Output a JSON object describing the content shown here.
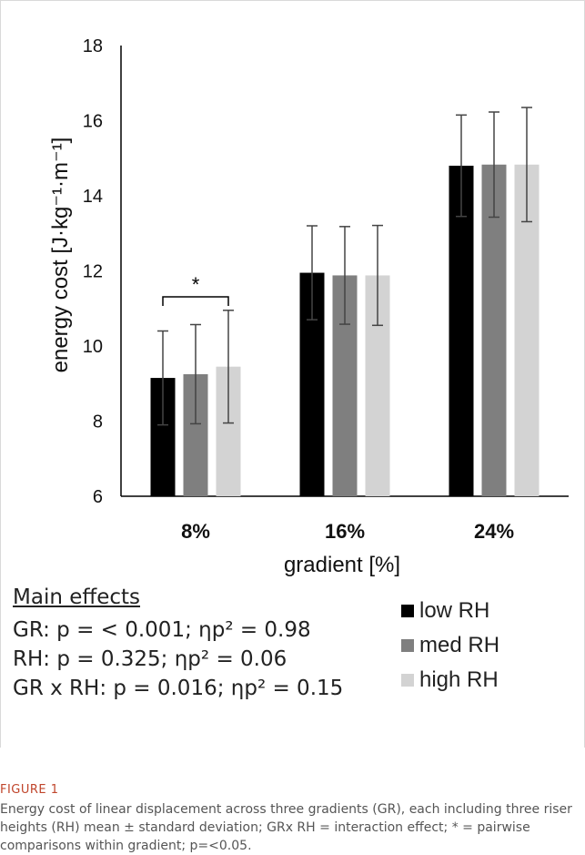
{
  "chart_data": {
    "type": "bar",
    "categories": [
      "8%",
      "16%",
      "24%"
    ],
    "xlabel": "gradient [%]",
    "ylabel": "energy cost [J·kg⁻¹·m⁻¹]",
    "ylim": [
      6,
      18
    ],
    "yticks": [
      "6",
      "8",
      "10",
      "12",
      "14",
      "16",
      "18"
    ],
    "series": [
      {
        "name": "low RH",
        "color": "#000000",
        "values": [
          9.15,
          11.95,
          14.8
        ],
        "sd": [
          1.25,
          1.25,
          1.35
        ]
      },
      {
        "name": "med RH",
        "color": "#7f7f7f",
        "values": [
          9.25,
          11.88,
          14.83
        ],
        "sd": [
          1.32,
          1.3,
          1.4
        ]
      },
      {
        "name": "high RH",
        "color": "#d3d3d3",
        "values": [
          9.45,
          11.88,
          14.83
        ],
        "sd": [
          1.5,
          1.33,
          1.52
        ]
      }
    ],
    "annotations": [
      {
        "text": "*",
        "category": "8%",
        "between": [
          "low RH",
          "high RH"
        ]
      }
    ],
    "legend": "bottom-right"
  },
  "effects": {
    "heading": "Main effects",
    "lines": [
      "GR: p = < 0.001; ηp² = 0.98",
      "RH:  p = 0.325; ηp² = 0.06",
      "GR x RH: p = 0.016; ηp² = 0.15"
    ]
  },
  "caption": {
    "label": "FIGURE 1",
    "text": "Energy cost of linear displacement across three gradients (GR), each including three riser heights (RH) mean ± standard deviation; GRx RH = interaction effect; * = pairwise comparisons within gradient; p=<0.05."
  }
}
